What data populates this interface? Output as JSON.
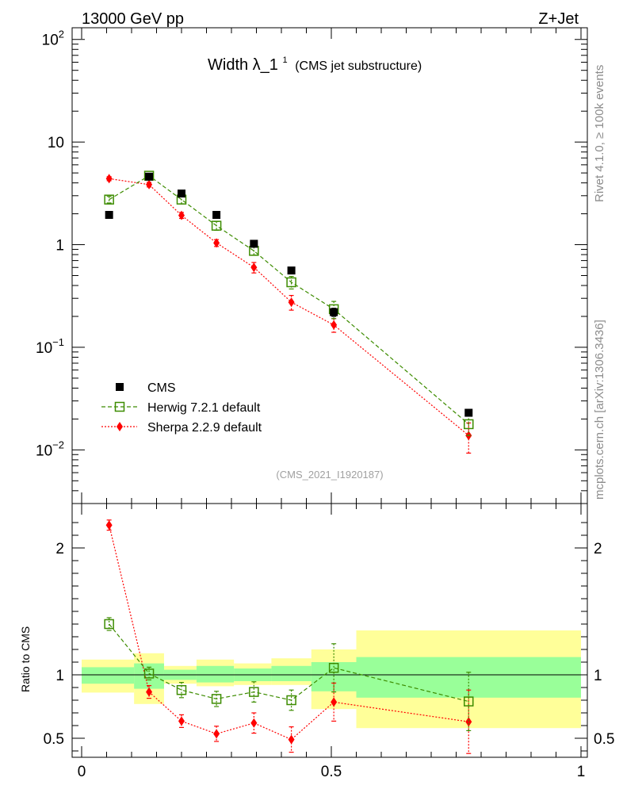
{
  "header": {
    "left": "13000 GeV pp",
    "right": "Z+Jet"
  },
  "side_text": {
    "rivet": "Rivet 4.1.0, ≥ 100k events",
    "mcplots": "mcplots.cern.ch [arXiv:1306.3436]"
  },
  "chart_data": [
    {
      "type": "scatter",
      "panel": "main",
      "title": "Width λ_1",
      "title_sup": "1",
      "title_suffix": "(CMS jet substructure)",
      "watermark": "(CMS_2021_I1920187)",
      "yscale": "log",
      "xlim": [
        0,
        1
      ],
      "ylim": [
        0.003,
        130
      ],
      "y_ticks": [
        {
          "value": 100,
          "label": "10",
          "sup": "2"
        },
        {
          "value": 10,
          "label": "10",
          "sup": ""
        },
        {
          "value": 1,
          "label": "1",
          "sup": ""
        },
        {
          "value": 0.1,
          "label": "10",
          "sup": "−1"
        },
        {
          "value": 0.01,
          "label": "10",
          "sup": "−2"
        }
      ],
      "legend_position": "bottom-left",
      "series": [
        {
          "name": "CMS",
          "color": "#000000",
          "marker": "square-filled",
          "line": "none",
          "x": [
            0.055,
            0.135,
            0.2,
            0.27,
            0.345,
            0.42,
            0.505,
            0.775
          ],
          "y": [
            1.95,
            4.6,
            3.15,
            1.95,
            1.02,
            0.56,
            0.22,
            0.023
          ],
          "yerr": [
            0,
            0,
            0,
            0,
            0,
            0,
            0.02,
            0
          ]
        },
        {
          "name": "Herwig 7.2.1 default",
          "color": "#3d8c00",
          "marker": "square-open",
          "line": "dashed",
          "x": [
            0.055,
            0.135,
            0.2,
            0.27,
            0.345,
            0.42,
            0.505,
            0.775
          ],
          "y": [
            2.75,
            4.7,
            2.75,
            1.53,
            0.87,
            0.43,
            0.235,
            0.0178
          ],
          "yerr": [
            0.2,
            0.25,
            0.25,
            0.15,
            0.08,
            0.06,
            0.045,
            0.004
          ]
        },
        {
          "name": "Sherpa 2.2.9 default",
          "color": "#ff0000",
          "marker": "diamond-filled",
          "line": "dotted",
          "x": [
            0.055,
            0.135,
            0.2,
            0.27,
            0.345,
            0.42,
            0.505,
            0.775
          ],
          "y": [
            4.4,
            3.85,
            1.93,
            1.04,
            0.6,
            0.275,
            0.165,
            0.0138
          ],
          "yerr": [
            0.2,
            0.2,
            0.13,
            0.08,
            0.07,
            0.045,
            0.025,
            0.0045
          ]
        }
      ]
    },
    {
      "type": "scatter",
      "panel": "ratio",
      "ylabel": "Ratio to CMS",
      "xlim": [
        0,
        1
      ],
      "ylim": [
        0.35,
        2.35
      ],
      "x_ticks": [
        {
          "value": 0,
          "label": "0"
        },
        {
          "value": 0.5,
          "label": "0.5"
        },
        {
          "value": 1,
          "label": "1"
        }
      ],
      "y_ticks": [
        {
          "value": 0.5,
          "label": "0.5"
        },
        {
          "value": 1,
          "label": "1"
        },
        {
          "value": 2,
          "label": "2"
        }
      ],
      "bands": {
        "bin_edges": [
          0,
          0.105,
          0.165,
          0.23,
          0.305,
          0.38,
          0.46,
          0.55,
          1.0
        ],
        "yellow_lo": [
          0.86,
          0.77,
          0.93,
          0.91,
          0.92,
          0.92,
          0.73,
          0.58
        ],
        "yellow_hi": [
          1.12,
          1.17,
          1.07,
          1.12,
          1.09,
          1.13,
          1.2,
          1.35
        ],
        "green_lo": [
          0.93,
          0.89,
          0.96,
          0.94,
          0.95,
          0.95,
          0.87,
          0.82
        ],
        "green_hi": [
          1.06,
          1.09,
          1.04,
          1.07,
          1.05,
          1.07,
          1.1,
          1.14
        ]
      },
      "series": [
        {
          "name": "Herwig 7.2.1 default",
          "color": "#3d8c00",
          "marker": "square-open",
          "line": "dashed",
          "x": [
            0.055,
            0.135,
            0.2,
            0.27,
            0.345,
            0.42,
            0.505,
            0.775
          ],
          "y": [
            1.4,
            1.01,
            0.88,
            0.81,
            0.865,
            0.8,
            1.055,
            0.79
          ],
          "yerr": [
            0.05,
            0.05,
            0.06,
            0.06,
            0.08,
            0.08,
            0.19,
            0.23
          ]
        },
        {
          "name": "Sherpa 2.2.9 default",
          "color": "#ff0000",
          "marker": "diamond-filled",
          "line": "dotted",
          "x": [
            0.055,
            0.135,
            0.2,
            0.27,
            0.345,
            0.42,
            0.505,
            0.775
          ],
          "y": [
            2.18,
            0.865,
            0.635,
            0.535,
            0.62,
            0.49,
            0.785,
            0.63
          ],
          "yerr": [
            0.04,
            0.05,
            0.05,
            0.06,
            0.08,
            0.1,
            0.15,
            0.25
          ]
        }
      ]
    }
  ]
}
